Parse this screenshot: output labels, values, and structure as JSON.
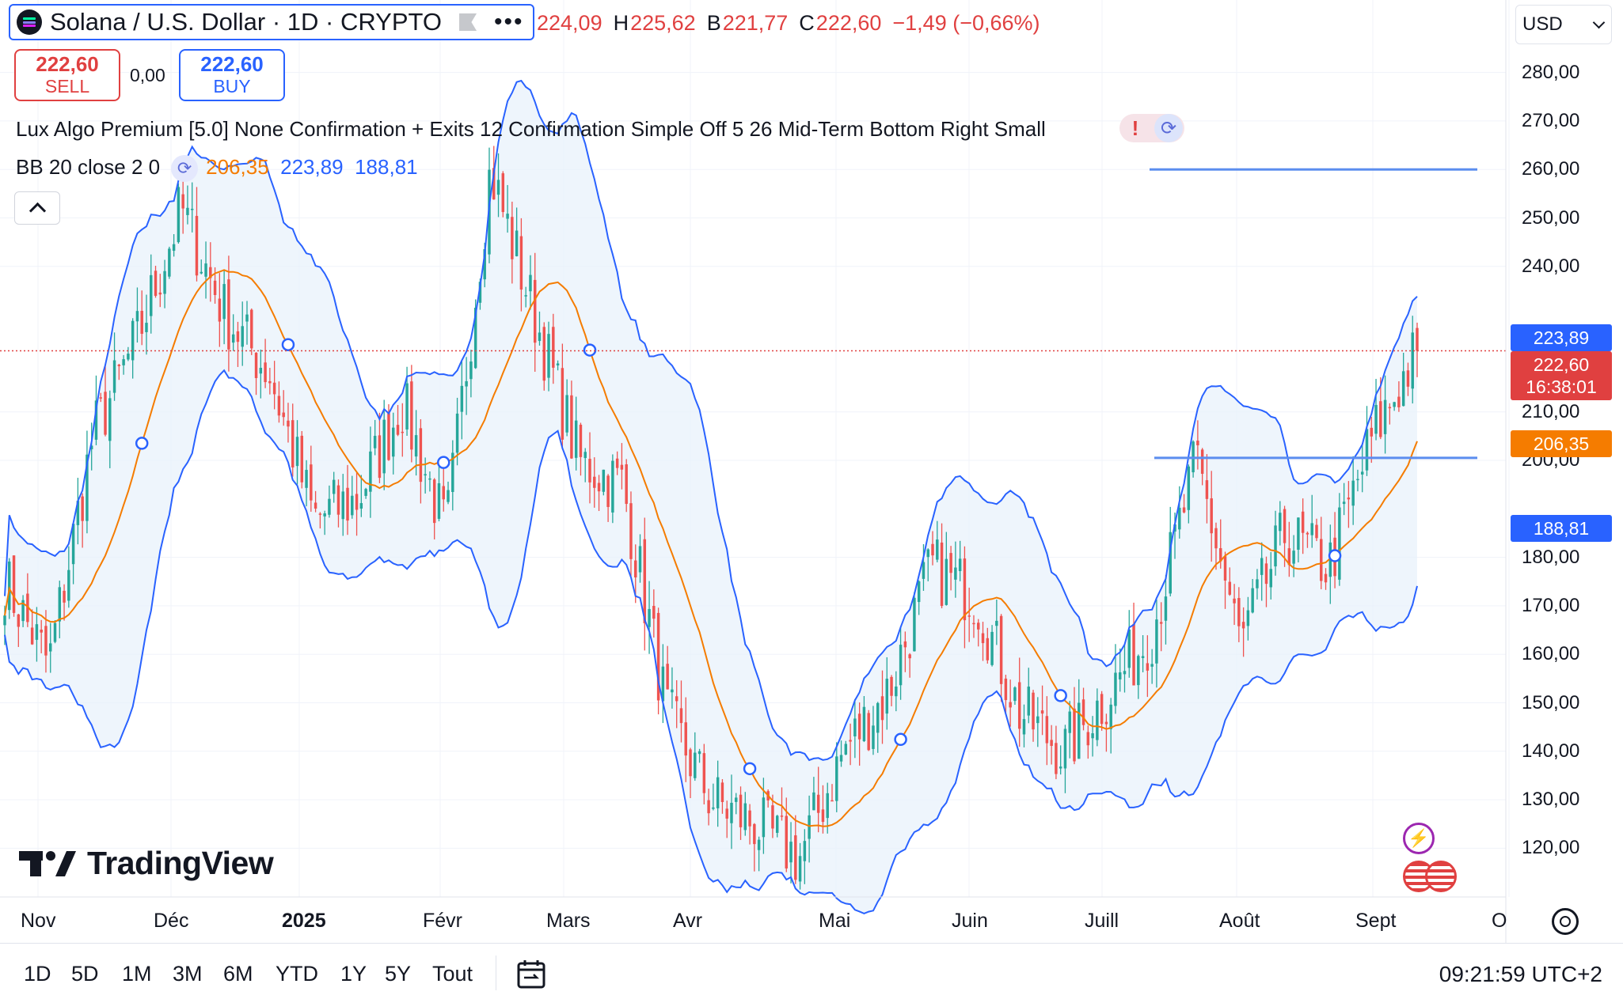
{
  "header": {
    "symbol_title": "Solana / U.S. Dollar · 1D · CRYPTO",
    "more_glyph": "•••",
    "ohlc": [
      {
        "key": "",
        "value": "224,09"
      },
      {
        "key": "H",
        "value": "225,62"
      },
      {
        "key": "B",
        "value": "221,77"
      },
      {
        "key": "C",
        "value": "222,60"
      },
      {
        "key": "",
        "value": "−1,49 (−0,66%)"
      }
    ],
    "currency": "USD"
  },
  "trade": {
    "sell_price": "222,60",
    "sell_label": "SELL",
    "spread": "0,00",
    "buy_price": "222,60",
    "buy_label": "BUY"
  },
  "indicators": {
    "lux_algo": "Lux Algo Premium [5.0] None Confirmation + Exits 12 Confirmation Simple Off 5 26 Mid-Term Bottom Right Small",
    "lux_warning": "!",
    "bb_name": "BB 20 close 2 0",
    "bb_basis": "206,35",
    "bb_upper": "223,89",
    "bb_lower": "188,81"
  },
  "price_axis": {
    "labels": [
      "280,00",
      "270,00",
      "260,00",
      "250,00",
      "240,00",
      "210,00",
      "200,00",
      "180,00",
      "170,00",
      "160,00",
      "150,00",
      "140,00",
      "130,00",
      "120,00"
    ],
    "tags": {
      "upper": "223,89",
      "last": "222,60",
      "countdown": "16:38:01",
      "basis": "206,35",
      "lower": "188,81"
    }
  },
  "time_axis": {
    "labels": [
      "Nov",
      "Déc",
      "2025",
      "Févr",
      "Mars",
      "Avr",
      "Mai",
      "Juin",
      "Juill",
      "Août",
      "Sept",
      "O"
    ]
  },
  "branding": {
    "logo_text": "TradingView"
  },
  "toolbar": {
    "ranges": [
      "1D",
      "5D",
      "1M",
      "3M",
      "6M",
      "YTD",
      "1Y",
      "5Y",
      "Tout"
    ],
    "clock": "09:21:59 UTC+2"
  },
  "colors": {
    "up": "#26a69a",
    "down": "#ef5350",
    "bb_band": "#2962ff",
    "bb_basis": "#f57c00",
    "accent": "#2962ff",
    "last_price": "#e04040"
  },
  "chart_data": {
    "type": "candlestick",
    "symbol": "SOLUSD",
    "interval": "1D",
    "ylim": [
      115,
      288
    ],
    "x": [
      "Nov",
      "Déc",
      "2025",
      "Févr",
      "Mars",
      "Avr",
      "Mai",
      "Juin",
      "Juill",
      "Août",
      "Sept"
    ],
    "close_anchors": [
      {
        "x": "Nov",
        "close": 175
      },
      {
        "x": "Nov",
        "close": 158
      },
      {
        "x": "Nov",
        "close": 205
      },
      {
        "x": "Nov",
        "close": 225
      },
      {
        "x": "Déc",
        "close": 252
      },
      {
        "x": "Déc",
        "close": 230
      },
      {
        "x": "Déc",
        "close": 218
      },
      {
        "x": "Déc",
        "close": 188
      },
      {
        "x": "2025",
        "close": 192
      },
      {
        "x": "2025",
        "close": 212
      },
      {
        "x": "2025",
        "close": 185
      },
      {
        "x": "2025",
        "close": 260
      },
      {
        "x": "Févr",
        "close": 230
      },
      {
        "x": "Févr",
        "close": 200
      },
      {
        "x": "Févr",
        "close": 195
      },
      {
        "x": "Mars",
        "close": 148
      },
      {
        "x": "Mars",
        "close": 130
      },
      {
        "x": "Mars",
        "close": 125
      },
      {
        "x": "Avr",
        "close": 118
      },
      {
        "x": "Avr",
        "close": 140
      },
      {
        "x": "Mai",
        "close": 152
      },
      {
        "x": "Mai",
        "close": 178
      },
      {
        "x": "Juin",
        "close": 172
      },
      {
        "x": "Juin",
        "close": 148
      },
      {
        "x": "Juin",
        "close": 140
      },
      {
        "x": "Juill",
        "close": 152
      },
      {
        "x": "Juill",
        "close": 165
      },
      {
        "x": "Juill",
        "close": 200
      },
      {
        "x": "Août",
        "close": 162
      },
      {
        "x": "Août",
        "close": 185
      },
      {
        "x": "Août",
        "close": 178
      },
      {
        "x": "Sept",
        "close": 205
      },
      {
        "x": "Sept",
        "close": 222.6
      }
    ],
    "bollinger": {
      "period": 20,
      "basis": 206.35,
      "upper": 223.89,
      "lower": 188.81
    },
    "horizontal_lines": [
      260,
      200.5
    ],
    "last_price": 222.6
  }
}
